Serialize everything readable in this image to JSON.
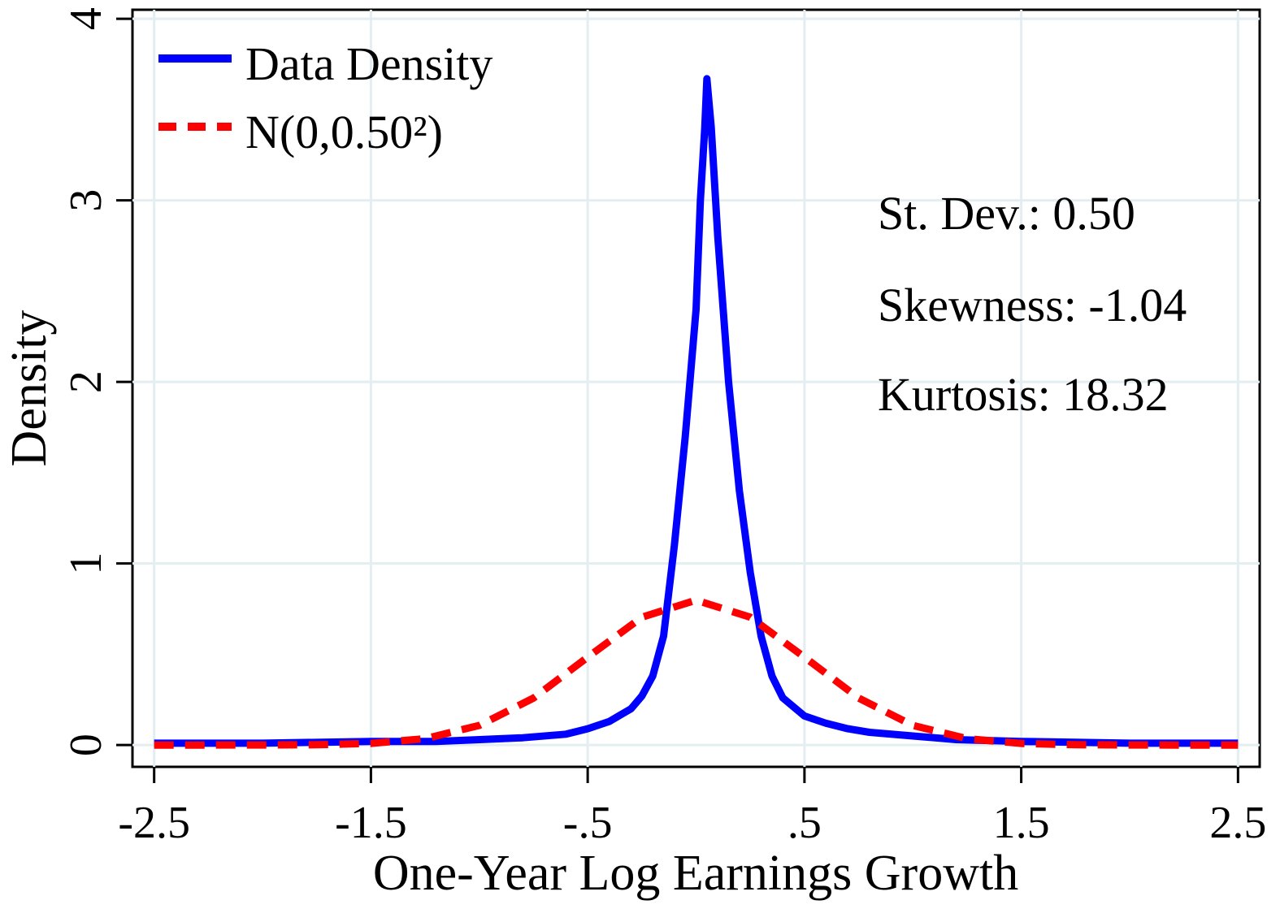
{
  "chart_data": {
    "type": "line",
    "xlabel": "One-Year Log Earnings Growth",
    "ylabel": "Density",
    "xlim": [
      -2.6,
      2.6
    ],
    "ylim": [
      -0.12,
      4.05
    ],
    "x_ticks": [
      -2.5,
      -1.5,
      -0.5,
      0.5,
      1.5,
      2.5
    ],
    "x_tick_labels": [
      "-2.5",
      "-1.5",
      "-.5",
      ".5",
      "1.5",
      "2.5"
    ],
    "y_ticks": [
      0,
      1,
      2,
      3,
      4
    ],
    "y_tick_labels": [
      "0",
      "1",
      "2",
      "3",
      "4"
    ],
    "grid": true,
    "legend_position": "top-left",
    "series": [
      {
        "name": "Data Density",
        "color": "#0000ff",
        "style": "solid",
        "x": [
          -2.5,
          -2.0,
          -1.5,
          -1.2,
          -1.0,
          -0.8,
          -0.6,
          -0.5,
          -0.4,
          -0.3,
          -0.25,
          -0.2,
          -0.15,
          -0.1,
          -0.05,
          0.0,
          0.02,
          0.04,
          0.05,
          0.07,
          0.1,
          0.15,
          0.2,
          0.25,
          0.3,
          0.35,
          0.4,
          0.5,
          0.6,
          0.7,
          0.8,
          1.0,
          1.2,
          1.5,
          2.0,
          2.5
        ],
        "y": [
          0.01,
          0.01,
          0.02,
          0.02,
          0.03,
          0.04,
          0.06,
          0.09,
          0.13,
          0.2,
          0.27,
          0.38,
          0.6,
          1.1,
          1.7,
          2.4,
          3.0,
          3.4,
          3.67,
          3.4,
          2.8,
          2.0,
          1.4,
          0.95,
          0.6,
          0.38,
          0.26,
          0.16,
          0.12,
          0.09,
          0.07,
          0.05,
          0.03,
          0.02,
          0.01,
          0.01
        ]
      },
      {
        "name": "N(0,0.50²)",
        "color": "#ff0000",
        "style": "dashed",
        "mu": 0,
        "sigma": 0.5,
        "x": [
          -2.5,
          -2.25,
          -2.0,
          -1.75,
          -1.5,
          -1.25,
          -1.0,
          -0.75,
          -0.5,
          -0.25,
          0.0,
          0.25,
          0.5,
          0.75,
          1.0,
          1.25,
          1.5,
          1.75,
          2.0,
          2.25,
          2.5
        ],
        "y": [
          0.0,
          0.0,
          0.0003,
          0.0017,
          0.0089,
          0.0351,
          0.108,
          0.259,
          0.484,
          0.704,
          0.798,
          0.704,
          0.484,
          0.259,
          0.108,
          0.0351,
          0.0089,
          0.0017,
          0.0003,
          0.0,
          0.0
        ]
      }
    ],
    "annotations": [
      "St. Dev.: 0.50",
      "Skewness: -1.04",
      "Kurtosis: 18.32"
    ]
  }
}
